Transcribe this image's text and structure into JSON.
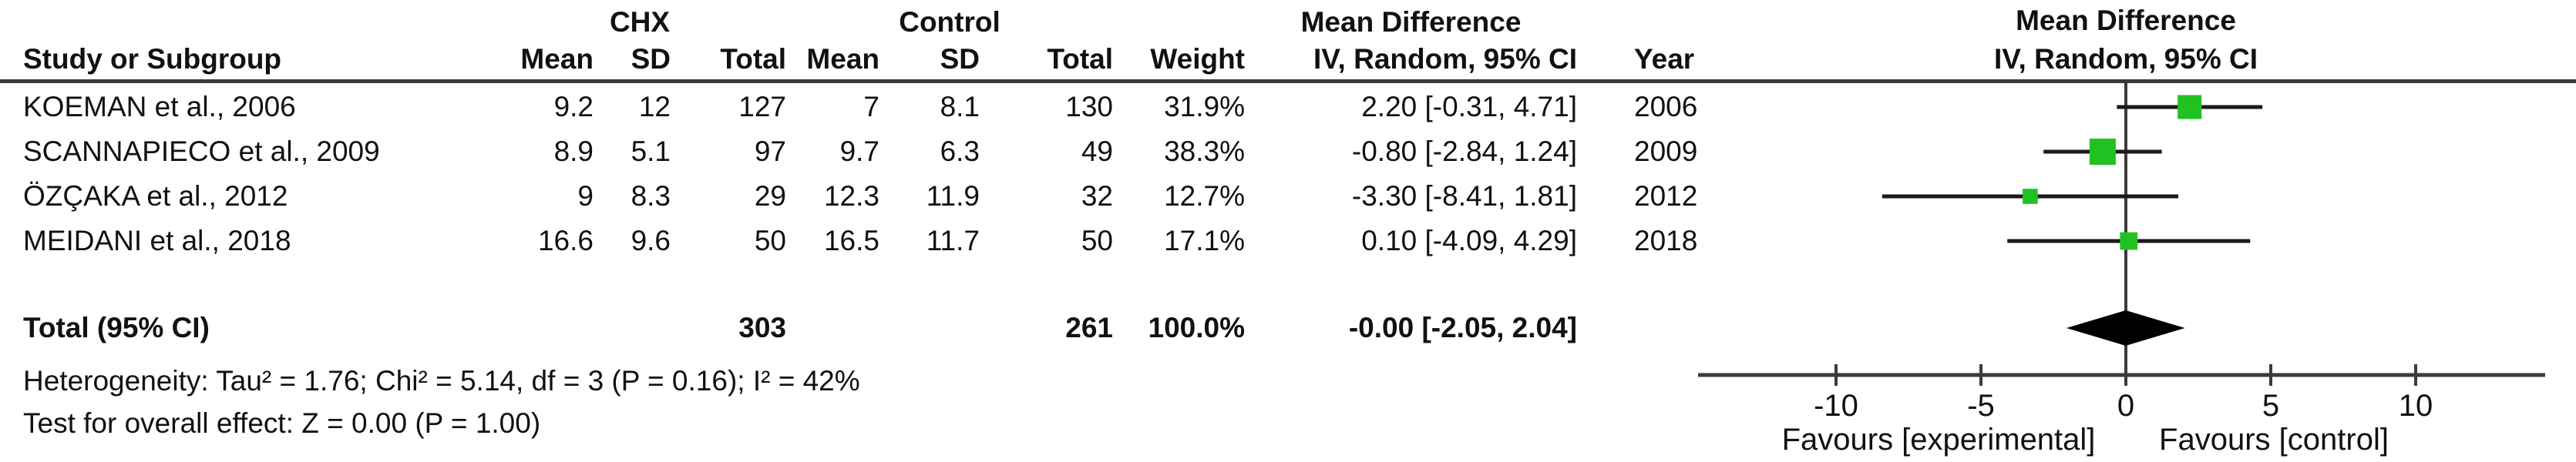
{
  "header": {
    "study": "Study or Subgroup",
    "chx_group": "CHX",
    "control_group": "Control",
    "mean": "Mean",
    "sd": "SD",
    "total": "Total",
    "weight": "Weight",
    "md_title": "Mean Difference",
    "md_method": "IV, Random, 95% CI",
    "year": "Year"
  },
  "colors": {
    "square_green": "#22c122",
    "ci_line": "#1a1a1a",
    "axis_gray": "#3b3b3b",
    "diamond_black": "#000000",
    "text": "#111111"
  },
  "chart_data": {
    "type": "forest",
    "effect_measure": "Mean Difference",
    "method": "IV, Random, 95% CI",
    "x_ticks": [
      -10,
      -5,
      0,
      5,
      10
    ],
    "xlim": [
      -14.8,
      14.4
    ],
    "favours_left": "Favours [experimental]",
    "favours_right": "Favours [control]",
    "studies": [
      {
        "name": "KOEMAN et al., 2006",
        "chx_mean": "9.2",
        "chx_sd": "12",
        "chx_total": "127",
        "ctrl_mean": "7",
        "ctrl_sd": "8.1",
        "ctrl_total": "130",
        "weight": "31.9%",
        "ci_text": "2.20 [-0.31, 4.71]",
        "year": "2006",
        "md": 2.2,
        "ci_low": -0.31,
        "ci_high": 4.71,
        "weight_pct": 31.9
      },
      {
        "name": "SCANNAPIECO et al., 2009",
        "chx_mean": "8.9",
        "chx_sd": "5.1",
        "chx_total": "97",
        "ctrl_mean": "9.7",
        "ctrl_sd": "6.3",
        "ctrl_total": "49",
        "weight": "38.3%",
        "ci_text": "-0.80 [-2.84, 1.24]",
        "year": "2009",
        "md": -0.8,
        "ci_low": -2.84,
        "ci_high": 1.24,
        "weight_pct": 38.3
      },
      {
        "name": "ÖZÇAKA et al., 2012",
        "chx_mean": "9",
        "chx_sd": "8.3",
        "chx_total": "29",
        "ctrl_mean": "12.3",
        "ctrl_sd": "11.9",
        "ctrl_total": "32",
        "weight": "12.7%",
        "ci_text": "-3.30 [-8.41, 1.81]",
        "year": "2012",
        "md": -3.3,
        "ci_low": -8.41,
        "ci_high": 1.81,
        "weight_pct": 12.7
      },
      {
        "name": "MEIDANI et al., 2018",
        "chx_mean": "16.6",
        "chx_sd": "9.6",
        "chx_total": "50",
        "ctrl_mean": "16.5",
        "ctrl_sd": "11.7",
        "ctrl_total": "50",
        "weight": "17.1%",
        "ci_text": "0.10 [-4.09, 4.29]",
        "year": "2018",
        "md": 0.1,
        "ci_low": -4.09,
        "ci_high": 4.29,
        "weight_pct": 17.1
      }
    ],
    "total": {
      "label": "Total (95% CI)",
      "chx_total": "303",
      "ctrl_total": "261",
      "weight": "100.0%",
      "ci_text": "-0.00 [-2.05, 2.04]",
      "md": -0.005,
      "ci_low": -2.05,
      "ci_high": 2.04
    },
    "heterogeneity": "Heterogeneity: Tau² = 1.76; Chi² = 5.14, df = 3 (P = 0.16); I² = 42%",
    "overall_effect": "Test for overall effect: Z = 0.00 (P = 1.00)"
  }
}
